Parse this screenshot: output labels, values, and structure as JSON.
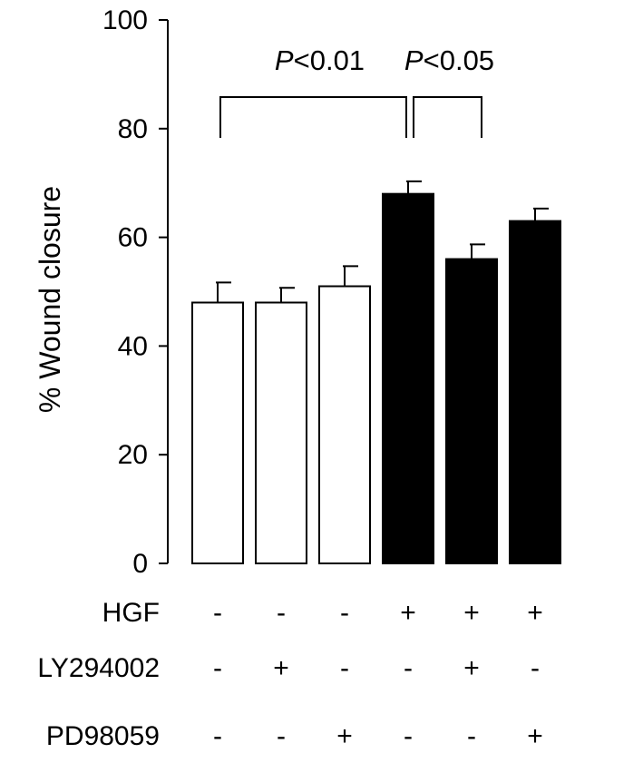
{
  "chart_data": {
    "type": "bar",
    "title": "",
    "xlabel": "",
    "ylabel": "% Wound closure",
    "ylim": [
      0,
      100
    ],
    "yticks": [
      "0",
      "20",
      "40",
      "60",
      "80",
      "100"
    ],
    "grid": false,
    "values": [
      48,
      48,
      51,
      68,
      56,
      63
    ],
    "errors": [
      3.7,
      2.7,
      3.7,
      2.3,
      2.7,
      2.3
    ],
    "bar_colors": [
      "#ffffff",
      "#ffffff",
      "#ffffff",
      "#000000",
      "#000000",
      "#000000"
    ],
    "bar_edge_color": "#000000",
    "conditions": [
      {
        "label": "HGF",
        "signs": [
          "-",
          "-",
          "-",
          "+",
          "+",
          "+"
        ]
      },
      {
        "label": "LY294002",
        "signs": [
          "-",
          "+",
          "-",
          "-",
          "+",
          "-"
        ]
      },
      {
        "label": "PD98059",
        "signs": [
          "-",
          "-",
          "+",
          "-",
          "-",
          "+"
        ]
      }
    ],
    "comparisons": [
      {
        "from": 0,
        "to": 3,
        "italic": "P",
        "text": "<0.01",
        "y": 80
      },
      {
        "from": 3,
        "to": 4,
        "italic": "P",
        "text": "<0.05",
        "y": 80
      }
    ]
  }
}
